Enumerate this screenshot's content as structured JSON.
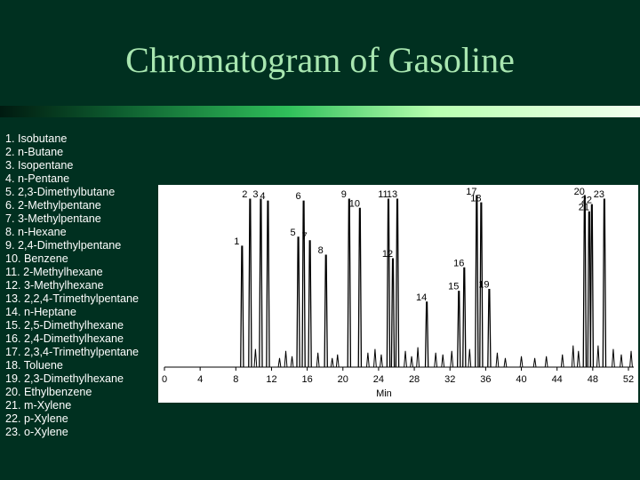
{
  "title": "Chromatogram of Gasoline",
  "legend_items": [
    "1. Isobutane",
    "2. n-Butane",
    "3. Isopentane",
    "4. n-Pentane",
    "5. 2,3-Dimethylbutane",
    "6. 2-Methylpentane",
    "7. 3-Methylpentane",
    "8. n-Hexane",
    "9. 2,4-Dimethylpentane",
    "10. Benzene",
    "11. 2-Methylhexane",
    "12. 3-Methylhexane",
    "13. 2,2,4-Trimethylpentane",
    "14. n-Heptane",
    "15. 2,5-Dimethylhexane",
    "16. 2,4-Dimethylhexane",
    "17. 2,3,4-Trimethylpentane",
    "18. Toluene",
    "19. 2,3-Dimethylhexane",
    "20. Ethylbenzene",
    "21. m-Xylene",
    "22. p-Xylene",
    "23. o-Xylene"
  ],
  "colors": {
    "background": "#003020",
    "title": "#a8e6b0",
    "legend_text": "#ffffff",
    "plot_bg": "#ffffff",
    "trace": "#000000"
  },
  "chart_data": {
    "type": "line",
    "xlabel": "Min",
    "ylabel": "",
    "xlim": [
      0,
      53
    ],
    "ylim": [
      0,
      1
    ],
    "xticks": [
      0,
      4,
      8,
      12,
      16,
      20,
      24,
      28,
      32,
      36,
      40,
      44,
      48,
      52
    ],
    "grid": false,
    "peaks": [
      {
        "label": "1",
        "x": 8.7,
        "y": 0.67
      },
      {
        "label": "2",
        "x": 9.6,
        "y": 0.93
      },
      {
        "label": "3",
        "x": 10.8,
        "y": 0.93
      },
      {
        "label": "4",
        "x": 11.6,
        "y": 0.92
      },
      {
        "label": "5",
        "x": 15.0,
        "y": 0.72
      },
      {
        "label": "6",
        "x": 15.6,
        "y": 0.92
      },
      {
        "label": "7",
        "x": 16.3,
        "y": 0.7
      },
      {
        "label": "8",
        "x": 18.1,
        "y": 0.62
      },
      {
        "label": "9",
        "x": 20.7,
        "y": 0.93
      },
      {
        "label": "10",
        "x": 21.9,
        "y": 0.88
      },
      {
        "label": "11",
        "x": 25.1,
        "y": 0.93
      },
      {
        "label": "12",
        "x": 25.6,
        "y": 0.6
      },
      {
        "label": "13",
        "x": 26.1,
        "y": 0.93
      },
      {
        "label": "14",
        "x": 29.4,
        "y": 0.36
      },
      {
        "label": "15",
        "x": 33.0,
        "y": 0.42
      },
      {
        "label": "16",
        "x": 33.6,
        "y": 0.55
      },
      {
        "label": "17",
        "x": 35.0,
        "y": 0.95
      },
      {
        "label": "18",
        "x": 35.5,
        "y": 0.91
      },
      {
        "label": "19",
        "x": 36.4,
        "y": 0.43
      },
      {
        "label": "20",
        "x": 47.1,
        "y": 0.95
      },
      {
        "label": "21",
        "x": 47.6,
        "y": 0.86
      },
      {
        "label": "22",
        "x": 47.9,
        "y": 0.9
      },
      {
        "label": "23",
        "x": 49.3,
        "y": 0.93
      }
    ],
    "minor_peaks": [
      {
        "x": 10.2,
        "y": 0.1
      },
      {
        "x": 12.9,
        "y": 0.05
      },
      {
        "x": 13.6,
        "y": 0.09
      },
      {
        "x": 14.3,
        "y": 0.06
      },
      {
        "x": 17.2,
        "y": 0.08
      },
      {
        "x": 18.8,
        "y": 0.05
      },
      {
        "x": 19.4,
        "y": 0.07
      },
      {
        "x": 22.8,
        "y": 0.08
      },
      {
        "x": 23.6,
        "y": 0.1
      },
      {
        "x": 24.3,
        "y": 0.07
      },
      {
        "x": 27.0,
        "y": 0.09
      },
      {
        "x": 27.7,
        "y": 0.06
      },
      {
        "x": 28.4,
        "y": 0.11
      },
      {
        "x": 30.4,
        "y": 0.08
      },
      {
        "x": 31.2,
        "y": 0.07
      },
      {
        "x": 32.2,
        "y": 0.09
      },
      {
        "x": 34.2,
        "y": 0.1
      },
      {
        "x": 37.3,
        "y": 0.08
      },
      {
        "x": 38.2,
        "y": 0.05
      },
      {
        "x": 40.0,
        "y": 0.06
      },
      {
        "x": 41.5,
        "y": 0.05
      },
      {
        "x": 42.8,
        "y": 0.06
      },
      {
        "x": 44.6,
        "y": 0.07
      },
      {
        "x": 45.8,
        "y": 0.12
      },
      {
        "x": 46.4,
        "y": 0.09
      },
      {
        "x": 48.6,
        "y": 0.12
      },
      {
        "x": 50.3,
        "y": 0.1
      },
      {
        "x": 51.2,
        "y": 0.07
      },
      {
        "x": 52.3,
        "y": 0.09
      }
    ]
  }
}
